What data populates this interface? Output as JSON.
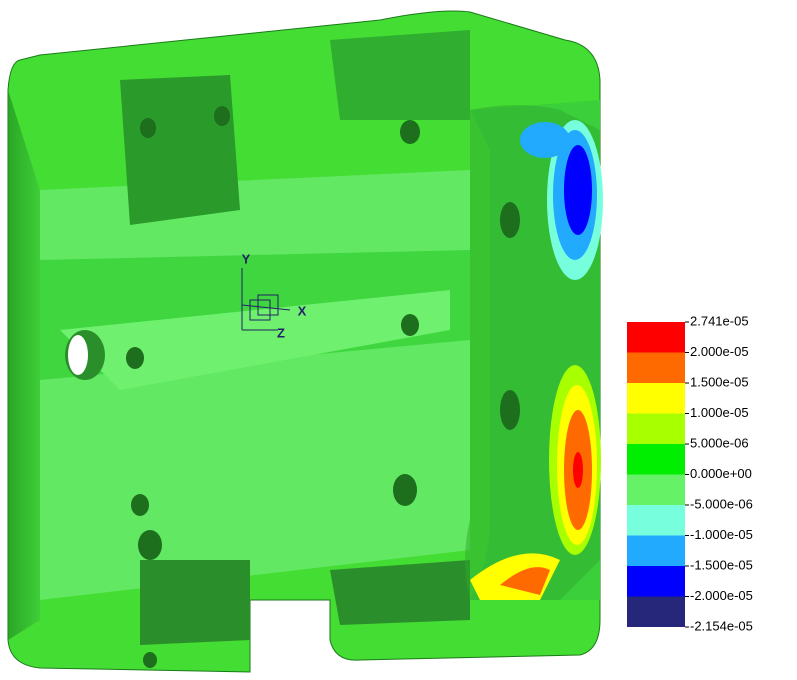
{
  "triad": {
    "y_label": "Y",
    "x_label": "X",
    "z_label": "Z"
  },
  "legend": {
    "labels": [
      "2.741e-05",
      "2.000e-05",
      "1.500e-05",
      "1.000e-05",
      "5.000e-06",
      "0.000e+00",
      "-5.000e-06",
      "-1.000e-05",
      "-1.500e-05",
      "-2.000e-05",
      "-2.154e-05"
    ],
    "colors": [
      "#ff0000",
      "#ff6a00",
      "#ffff00",
      "#a8ff00",
      "#00ee00",
      "#66f266",
      "#77ffdd",
      "#22aaff",
      "#0000ff",
      "#26267a"
    ]
  }
}
